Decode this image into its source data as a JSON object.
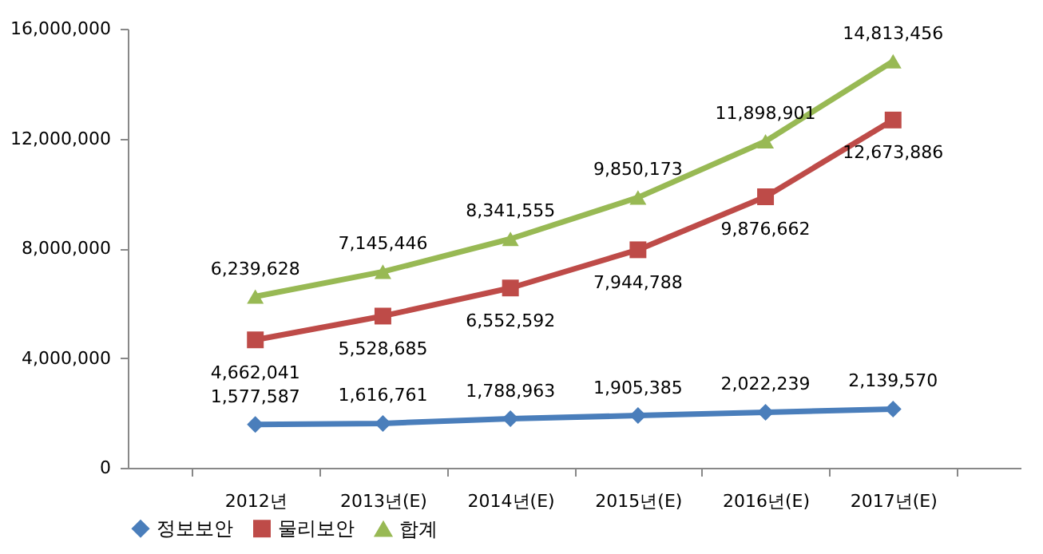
{
  "chart_data": {
    "type": "line",
    "categories": [
      "2012년",
      "2013년(E)",
      "2014년(E)",
      "2015년(E)",
      "2016년(E)",
      "2017년(E)"
    ],
    "series": [
      {
        "name": "정보보안",
        "color": "#4a7ebb",
        "marker": "diamond",
        "values": [
          1577587,
          1616761,
          1788963,
          1905385,
          2022239,
          2139570
        ],
        "value_labels": [
          "1,577,587",
          "1,616,761",
          "1,788,963",
          "1,905,385",
          "2,022,239",
          "2,139,570"
        ]
      },
      {
        "name": "물리보안",
        "color": "#be4b48",
        "marker": "square",
        "values": [
          4662041,
          5528685,
          6552592,
          7944788,
          9876662,
          12673886
        ],
        "value_labels": [
          "4,662,041",
          "5,528,685",
          "6,552,592",
          "7,944,788",
          "9,876,662",
          "12,673,886"
        ]
      },
      {
        "name": "합계",
        "color": "#98b954",
        "marker": "triangle",
        "values": [
          6239628,
          7145446,
          8341555,
          9850173,
          11898901,
          14813456
        ],
        "value_labels": [
          "6,239,628",
          "7,145,446",
          "8,341,555",
          "9,850,173",
          "11,898,901",
          "14,813,456"
        ]
      }
    ],
    "ylim": [
      0,
      16000000
    ],
    "yticks": [
      0,
      {
        "value": 4000000,
        "label": "4,000,000"
      },
      {
        "value": 8000000,
        "label": "8,000,000"
      },
      {
        "value": 12000000,
        "label": "12,000,000"
      },
      {
        "value": 16000000,
        "label": "16,000,000"
      }
    ],
    "grid": false,
    "legend": "bottom",
    "line_style": "solid"
  }
}
